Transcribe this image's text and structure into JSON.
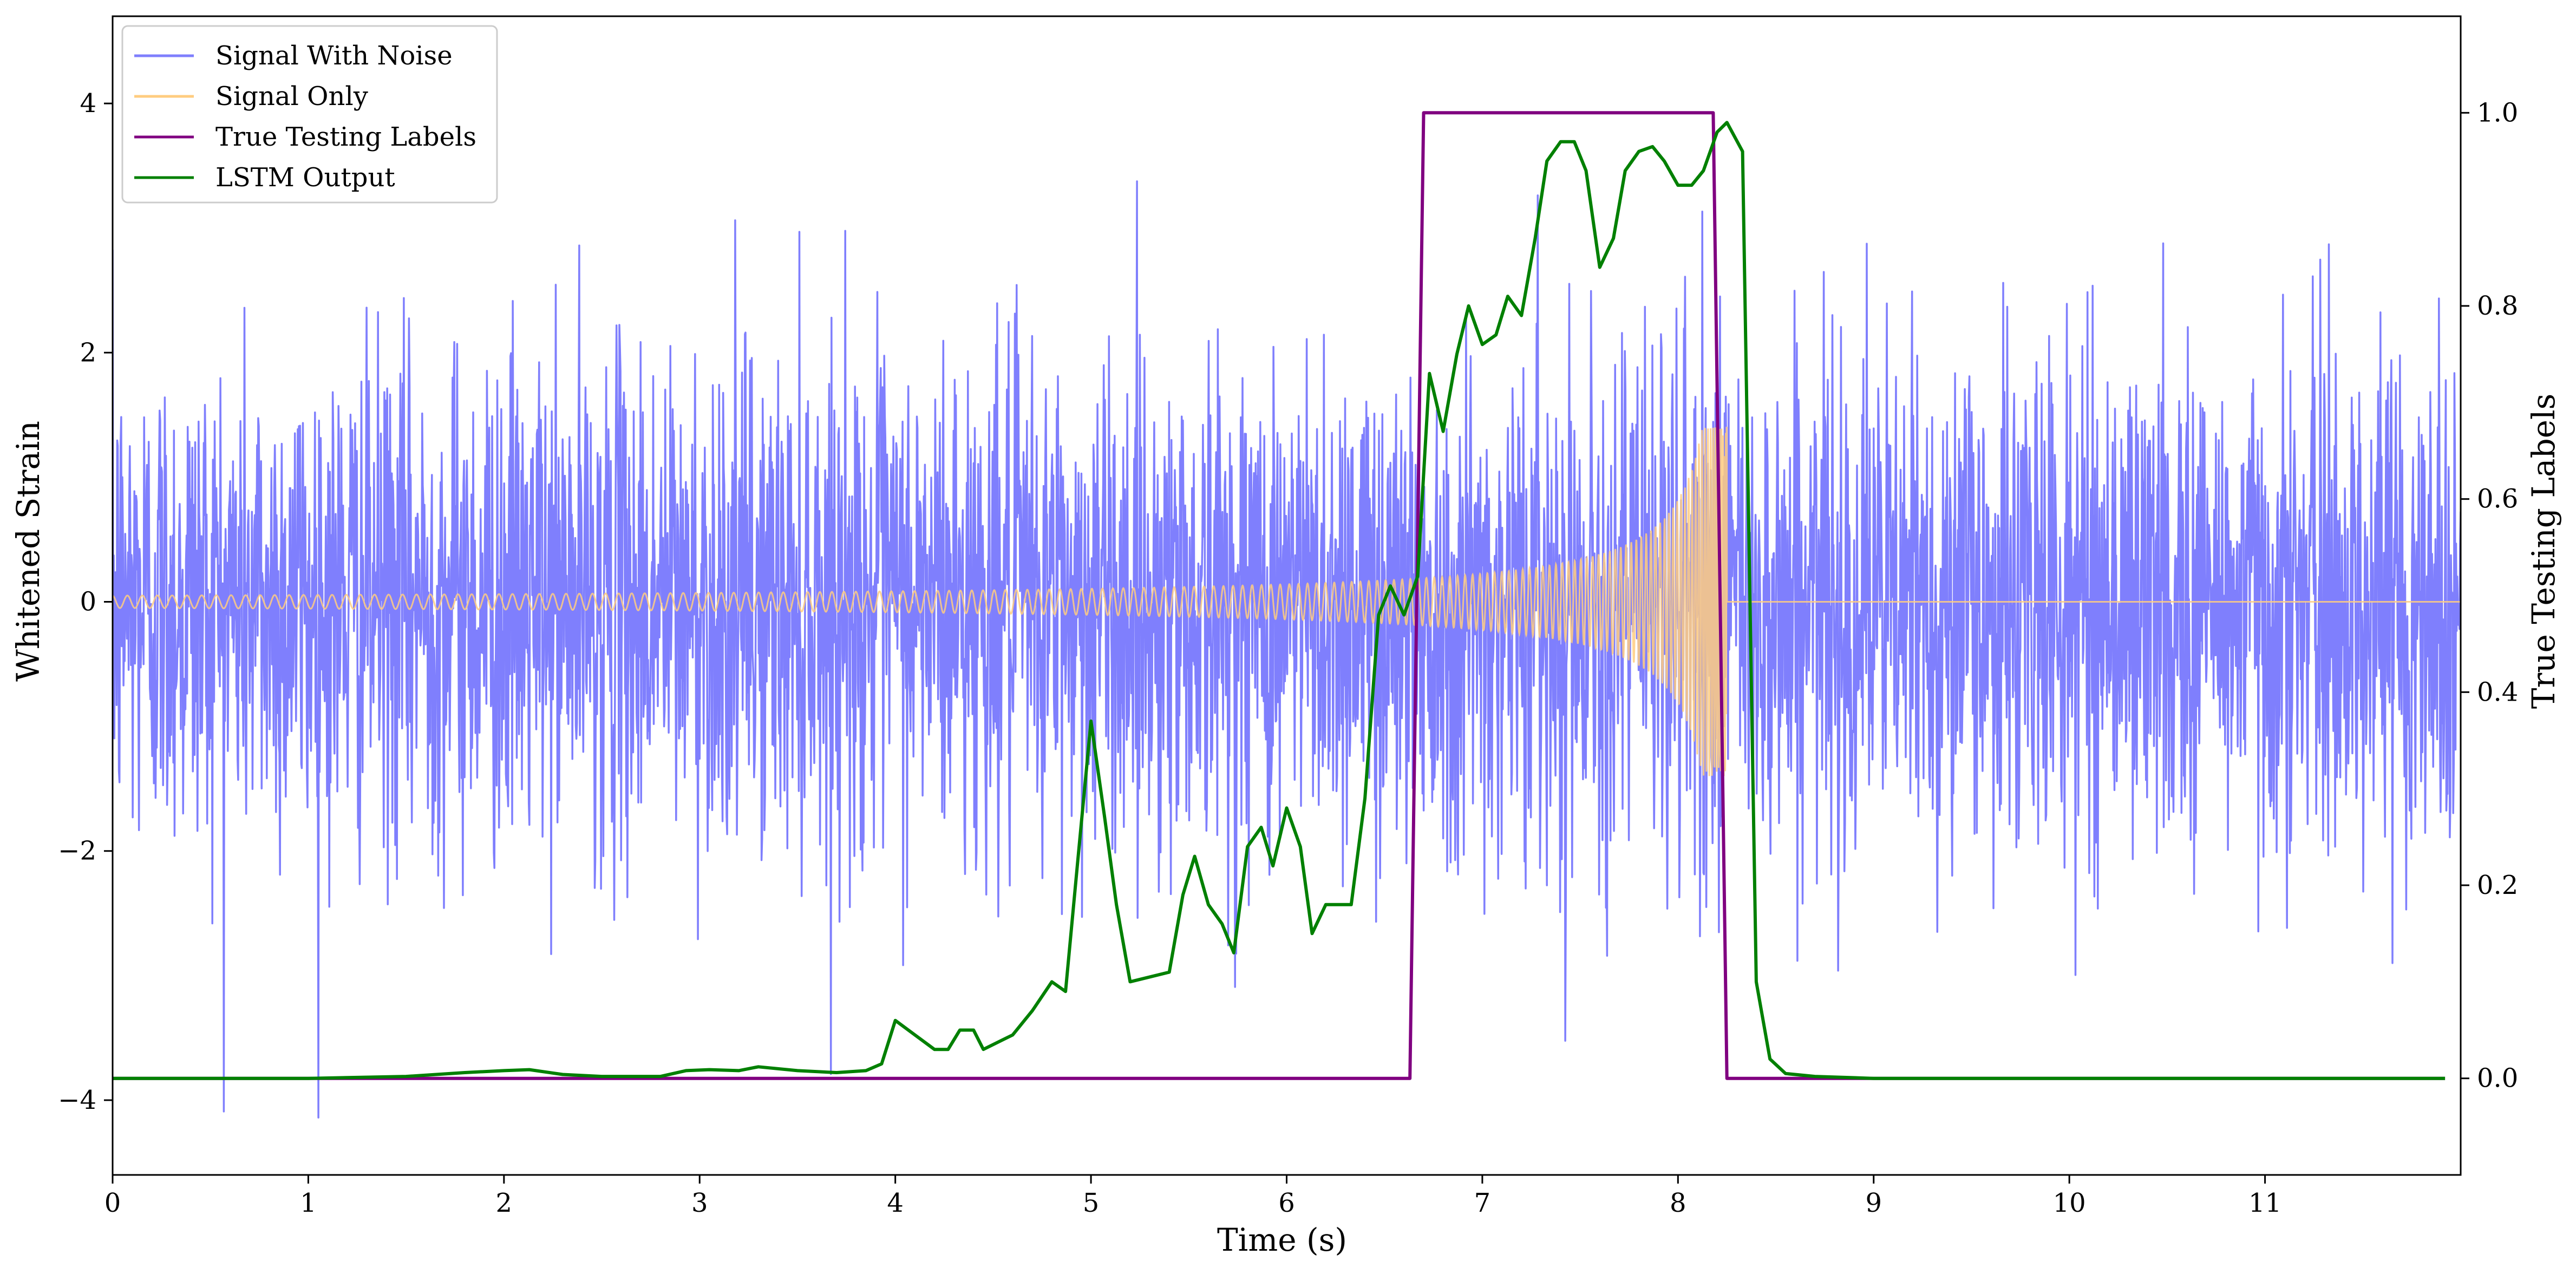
{
  "chart_data": {
    "type": "line",
    "xlabel": "Time (s)",
    "ylabel": "Whitened Strain",
    "y2label": "True Testing Labels",
    "xlim": [
      0,
      12
    ],
    "ylim": [
      -4.6,
      4.7
    ],
    "y2lim": [
      -0.1,
      1.1
    ],
    "x_ticks": [
      0,
      1,
      2,
      3,
      4,
      5,
      6,
      7,
      8,
      9,
      10,
      11
    ],
    "y_ticks": [
      -4,
      -2,
      0,
      2,
      4
    ],
    "y_tick_labels": [
      "−4",
      "−2",
      "0",
      "2",
      "4"
    ],
    "y2_ticks": [
      0.0,
      0.2,
      0.4,
      0.6,
      0.8,
      1.0
    ],
    "y2_tick_labels": [
      "0.0",
      "0.2",
      "0.4",
      "0.6",
      "0.8",
      "1.0"
    ],
    "grid": false,
    "legend_position": "top-left",
    "series": [
      {
        "name": "Signal With Noise",
        "color": "#7f7ffd",
        "axis": "left",
        "kind": "gaussian-noise",
        "x_range": [
          0,
          12
        ],
        "approx_std": 1.0,
        "approx_range": [
          -4.2,
          4.3
        ],
        "samples": 4096
      },
      {
        "name": "Signal Only",
        "color": "#ffcc80",
        "axis": "left",
        "kind": "chirp",
        "x_range": [
          0,
          12
        ],
        "merger_time": 8.25,
        "approx_amplitude_start": 0.05,
        "approx_amplitude_peak": 1.4
      },
      {
        "name": "True Testing Labels",
        "color": "#800080",
        "axis": "right",
        "x": [
          0.0,
          6.63,
          6.7,
          8.18,
          8.25,
          11.92
        ],
        "y": [
          0.0,
          0.0,
          1.0,
          1.0,
          0.0,
          0.0
        ]
      },
      {
        "name": "LSTM Output",
        "color": "#008000",
        "axis": "right",
        "x": [
          0.0,
          1.0,
          1.5,
          1.8,
          2.0,
          2.13,
          2.3,
          2.5,
          2.8,
          2.93,
          3.05,
          3.2,
          3.3,
          3.5,
          3.7,
          3.85,
          3.93,
          4.0,
          4.2,
          4.27,
          4.33,
          4.4,
          4.45,
          4.55,
          4.6,
          4.7,
          4.8,
          4.87,
          4.93,
          5.0,
          5.07,
          5.13,
          5.2,
          5.3,
          5.4,
          5.47,
          5.53,
          5.6,
          5.67,
          5.73,
          5.8,
          5.87,
          5.93,
          6.0,
          6.07,
          6.13,
          6.2,
          6.27,
          6.33,
          6.4,
          6.47,
          6.53,
          6.6,
          6.67,
          6.73,
          6.8,
          6.87,
          6.93,
          7.0,
          7.07,
          7.13,
          7.2,
          7.27,
          7.33,
          7.4,
          7.47,
          7.53,
          7.6,
          7.67,
          7.73,
          7.8,
          7.87,
          7.93,
          8.0,
          8.07,
          8.13,
          8.2,
          8.25,
          8.33,
          8.4,
          8.47,
          8.55,
          8.7,
          9.0,
          10.0,
          11.0,
          11.92
        ],
        "y": [
          0.0,
          0.0,
          0.002,
          0.006,
          0.008,
          0.009,
          0.004,
          0.002,
          0.002,
          0.008,
          0.009,
          0.008,
          0.012,
          0.008,
          0.006,
          0.008,
          0.015,
          0.06,
          0.03,
          0.03,
          0.05,
          0.05,
          0.03,
          0.04,
          0.045,
          0.07,
          0.1,
          0.09,
          0.22,
          0.37,
          0.27,
          0.18,
          0.1,
          0.105,
          0.11,
          0.19,
          0.23,
          0.18,
          0.16,
          0.13,
          0.24,
          0.26,
          0.22,
          0.28,
          0.24,
          0.15,
          0.18,
          0.18,
          0.18,
          0.29,
          0.48,
          0.51,
          0.48,
          0.52,
          0.73,
          0.67,
          0.75,
          0.8,
          0.76,
          0.77,
          0.81,
          0.79,
          0.87,
          0.95,
          0.97,
          0.97,
          0.94,
          0.84,
          0.87,
          0.94,
          0.96,
          0.965,
          0.95,
          0.925,
          0.925,
          0.94,
          0.98,
          0.99,
          0.96,
          0.1,
          0.02,
          0.005,
          0.002,
          0.0,
          0.0,
          0.0,
          0.0
        ]
      }
    ]
  }
}
